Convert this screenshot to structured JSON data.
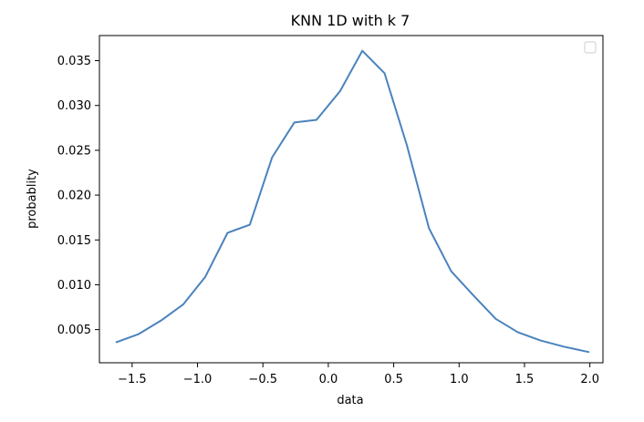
{
  "chart_data": {
    "type": "line",
    "title": "KNN 1D with k 7",
    "xlabel": "data",
    "ylabel": "probablity",
    "xlim": [
      -1.75,
      2.1
    ],
    "ylim": [
      0.0013,
      0.0378
    ],
    "xticks": [
      -1.5,
      -1.0,
      -0.5,
      0.0,
      0.5,
      1.0,
      1.5,
      2.0
    ],
    "xtick_labels": [
      "−1.5",
      "−1.0",
      "−0.5",
      "0.0",
      "0.5",
      "1.0",
      "1.5",
      "2.0"
    ],
    "yticks": [
      0.005,
      0.01,
      0.015,
      0.02,
      0.025,
      0.03,
      0.035
    ],
    "ytick_labels": [
      "0.005",
      "0.010",
      "0.015",
      "0.020",
      "0.025",
      "0.030",
      "0.035"
    ],
    "grid": false,
    "legend": {
      "position": "top-right",
      "entries": []
    },
    "series": [
      {
        "color": "#4a83bd",
        "x": [
          -1.62,
          -1.45,
          -1.28,
          -1.11,
          -0.94,
          -0.77,
          -0.6,
          -0.43,
          -0.26,
          -0.09,
          0.09,
          0.26,
          0.43,
          0.6,
          0.77,
          0.94,
          1.11,
          1.28,
          1.45,
          1.62,
          1.8,
          1.99
        ],
        "y": [
          0.0036,
          0.0045,
          0.006,
          0.0078,
          0.0109,
          0.0158,
          0.0167,
          0.0242,
          0.0281,
          0.0284,
          0.0316,
          0.0361,
          0.0336,
          0.0256,
          0.0163,
          0.0115,
          0.0088,
          0.0062,
          0.0047,
          0.0038,
          0.0031,
          0.0025
        ]
      }
    ]
  }
}
